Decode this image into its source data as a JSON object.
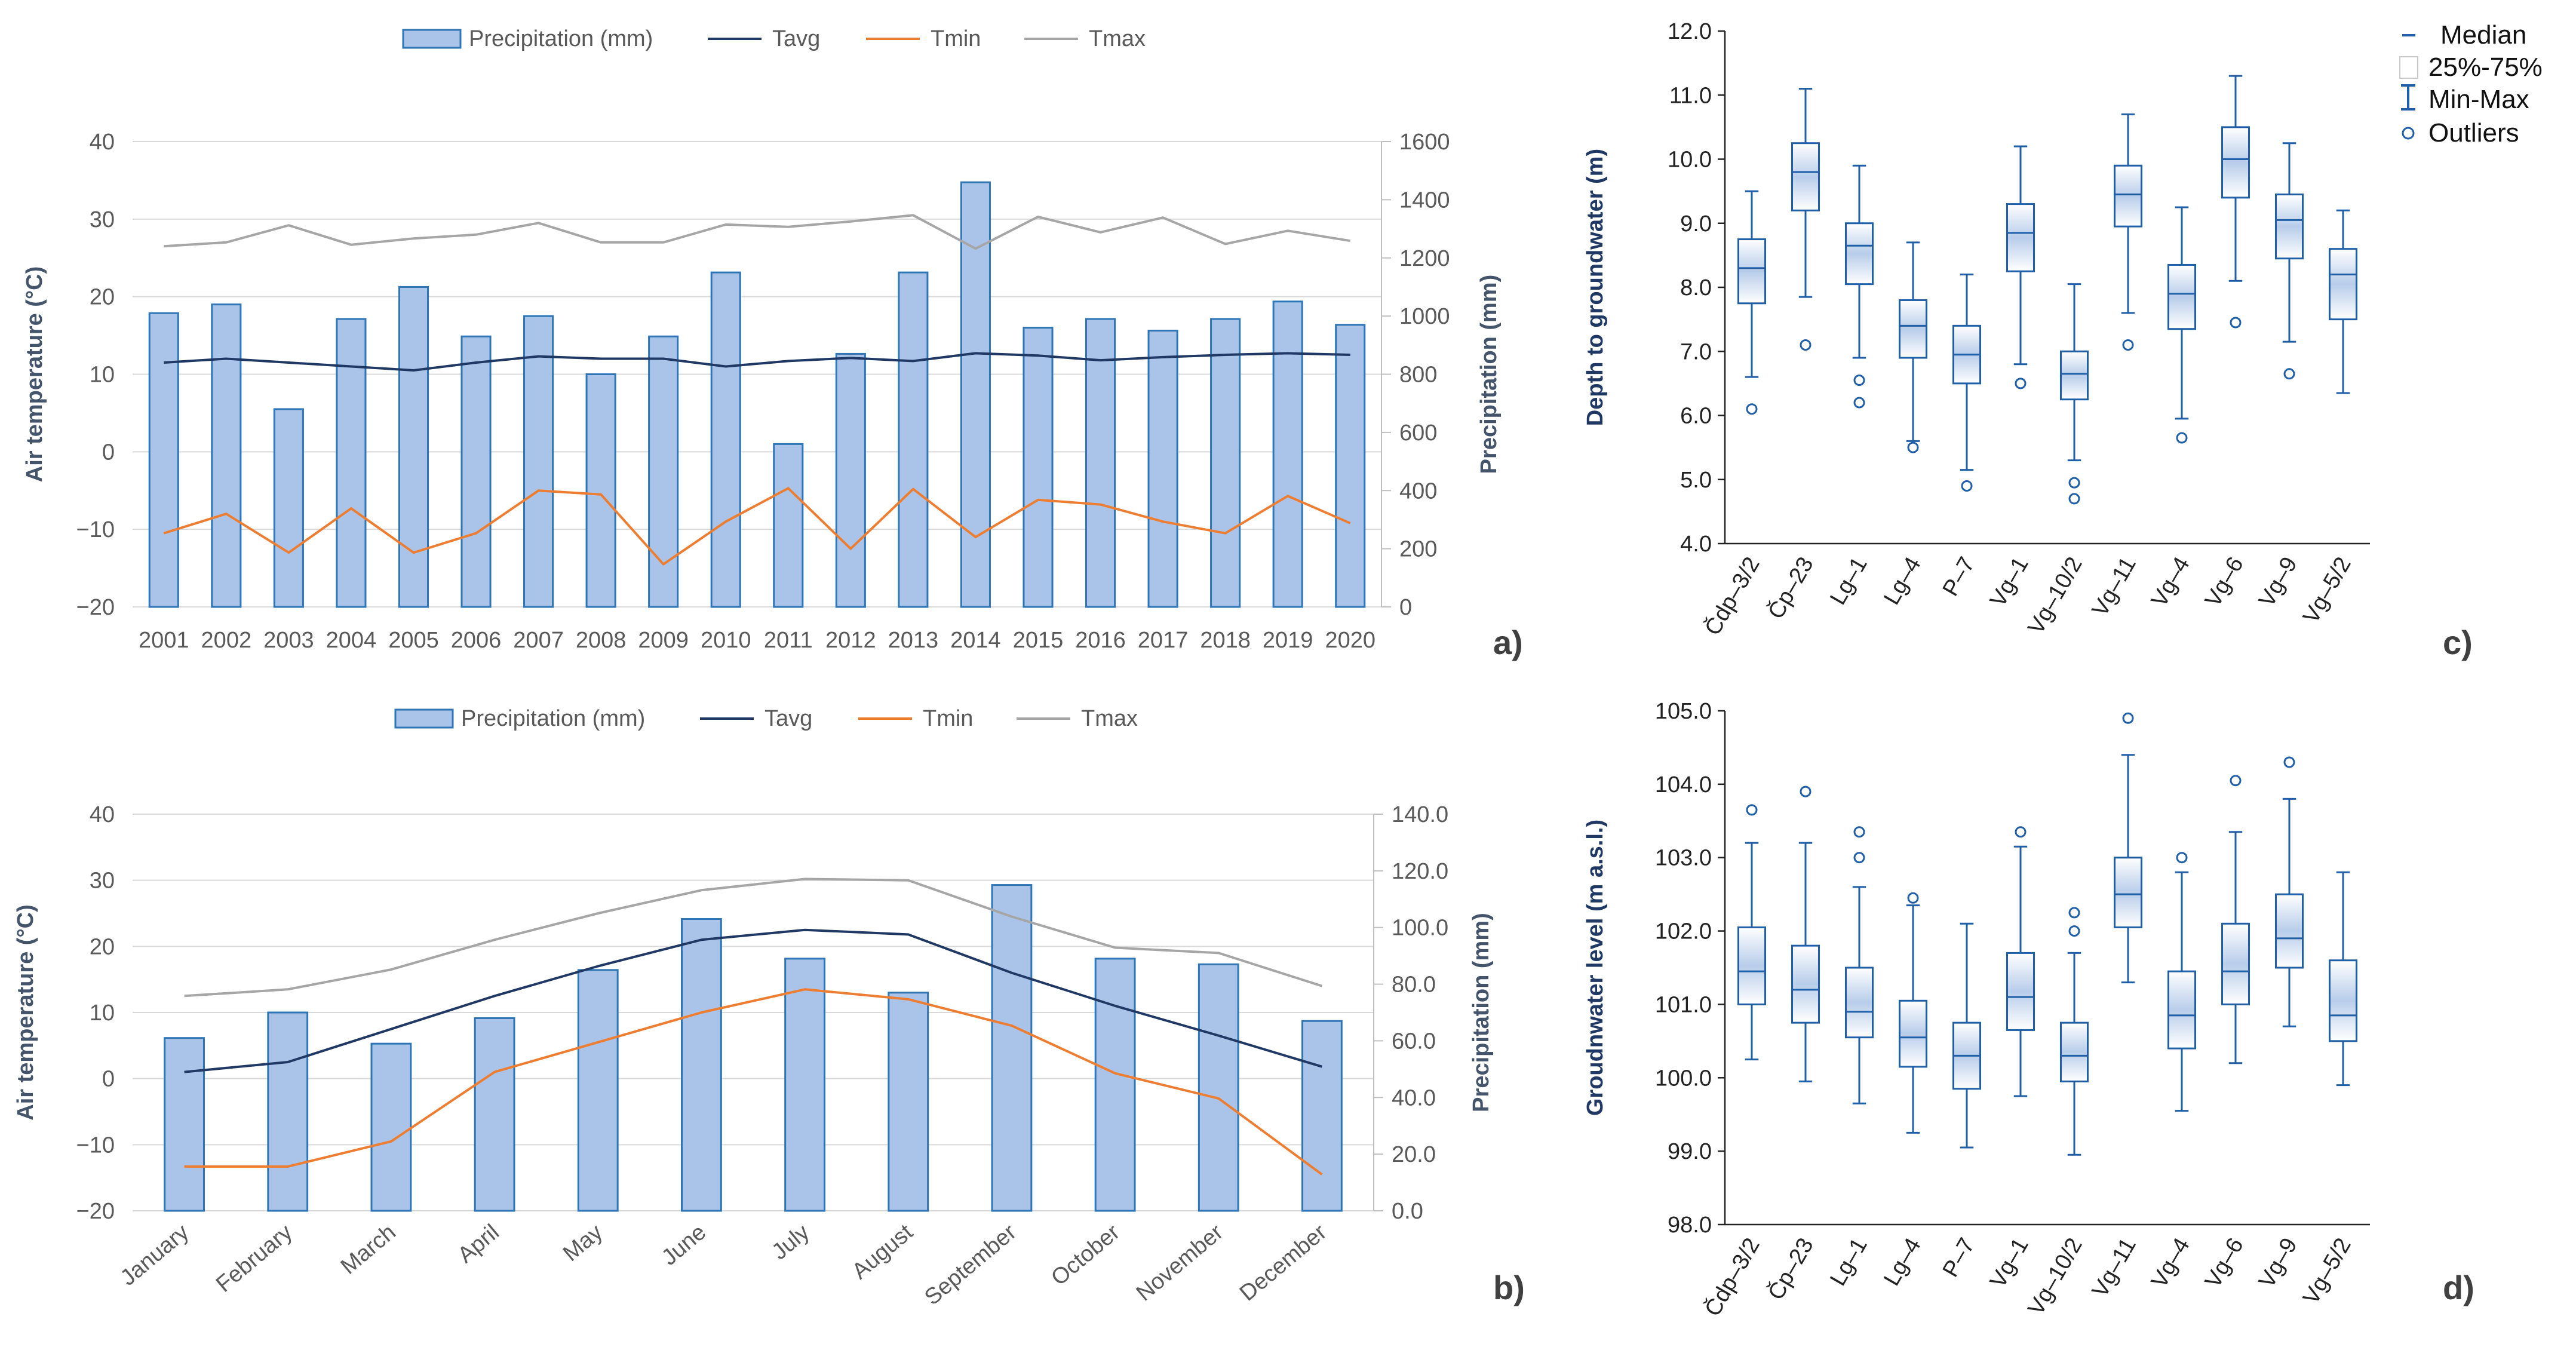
{
  "chart_data": [
    {
      "id": "a",
      "type": "bar",
      "panel_label": "a)",
      "categories": [
        "2001",
        "2002",
        "2003",
        "2004",
        "2005",
        "2006",
        "2007",
        "2008",
        "2009",
        "2010",
        "2011",
        "2012",
        "2013",
        "2014",
        "2015",
        "2016",
        "2017",
        "2018",
        "2019",
        "2020"
      ],
      "series": [
        {
          "name": "Precipitation (mm)",
          "kind": "bar",
          "axis": "right",
          "color": "#a9c4e8",
          "edge": "#2e75b6",
          "values": [
            1010,
            1040,
            680,
            990,
            1100,
            930,
            1000,
            800,
            930,
            1150,
            560,
            870,
            1150,
            1460,
            960,
            990,
            950,
            990,
            1050,
            970
          ]
        },
        {
          "name": "Tavg",
          "kind": "line",
          "axis": "left",
          "color": "#1f3864",
          "values": [
            11.5,
            12,
            11.5,
            11,
            10.5,
            11.5,
            12.3,
            12,
            12,
            11,
            11.7,
            12.1,
            11.7,
            12.7,
            12.4,
            11.8,
            12.2,
            12.5,
            12.7,
            12.5
          ]
        },
        {
          "name": "Tmin",
          "kind": "line",
          "axis": "left",
          "color": "#ed7d31",
          "values": [
            -10.5,
            -8,
            -13,
            -7.3,
            -13,
            -10.5,
            -5,
            -5.5,
            -14.5,
            -9,
            -4.7,
            -12.5,
            -4.8,
            -11,
            -6.2,
            -6.8,
            -9,
            -10.5,
            -5.7,
            -9.2
          ]
        },
        {
          "name": "Tmax",
          "kind": "line",
          "axis": "left",
          "color": "#a6a6a6",
          "values": [
            26.5,
            27,
            29.2,
            26.7,
            27.5,
            28,
            29.5,
            27,
            27,
            29.3,
            29,
            29.7,
            30.5,
            26.2,
            30.3,
            28.3,
            30.2,
            26.8,
            28.5,
            27.2
          ]
        }
      ],
      "xlabel": "",
      "ylabel": "Air temperature (°C)",
      "y2label": "Precipitation (mm)",
      "ylim": [
        -20,
        40
      ],
      "y2lim": [
        0,
        1600
      ],
      "yticks": [
        "40",
        "30",
        "20",
        "10",
        "0",
        "−10",
        "−20"
      ],
      "y2ticks": [
        "1600",
        "1400",
        "1200",
        "1000",
        "800",
        "600",
        "400",
        "200",
        "0"
      ],
      "legend": "top"
    },
    {
      "id": "b",
      "type": "bar",
      "panel_label": "b)",
      "categories": [
        "January",
        "February",
        "March",
        "April",
        "May",
        "June",
        "July",
        "August",
        "September",
        "October",
        "November",
        "December"
      ],
      "series": [
        {
          "name": "Precipitation (mm)",
          "kind": "bar",
          "axis": "right",
          "color": "#a9c4e8",
          "edge": "#2e75b6",
          "values": [
            61,
            70,
            59,
            68,
            85,
            103,
            89,
            77,
            115,
            89,
            87,
            67
          ]
        },
        {
          "name": "Tavg",
          "kind": "line",
          "axis": "left",
          "color": "#1f3864",
          "values": [
            1,
            2.5,
            7.5,
            12.5,
            17,
            21,
            22.5,
            21.8,
            16,
            11,
            6.5,
            1.8
          ]
        },
        {
          "name": "Tmin",
          "kind": "line",
          "axis": "left",
          "color": "#ed7d31",
          "values": [
            -13.3,
            -13.3,
            -9.5,
            1,
            5.5,
            10,
            13.5,
            12,
            8,
            0.8,
            -3,
            -14.5
          ]
        },
        {
          "name": "Tmax",
          "kind": "line",
          "axis": "left",
          "color": "#a6a6a6",
          "values": [
            12.5,
            13.5,
            16.5,
            21,
            25,
            28.5,
            30.2,
            30,
            24.5,
            19.8,
            19,
            14
          ]
        }
      ],
      "xlabel": "",
      "ylabel": "Air temperature (°C)",
      "y2label": "Precipitation (mm)",
      "ylim": [
        -20,
        40
      ],
      "y2lim": [
        0,
        140
      ],
      "yticks": [
        "40",
        "30",
        "20",
        "10",
        "0",
        "−10",
        "−20"
      ],
      "y2ticks": [
        "140.0",
        "120.0",
        "100.0",
        "80.0",
        "60.0",
        "40.0",
        "20.0",
        "0.0"
      ],
      "legend": "top"
    },
    {
      "id": "c",
      "type": "box",
      "panel_label": "c)",
      "categories": [
        "Čdp–3/2",
        "Čp–23",
        "Lg–1",
        "Lg–4",
        "P–7",
        "Vg–1",
        "Vg–10/2",
        "Vg–11",
        "Vg–4",
        "Vg–6",
        "Vg–9",
        "Vg–5/2"
      ],
      "boxes": [
        {
          "min": 6.6,
          "q1": 7.75,
          "median": 8.3,
          "q3": 8.75,
          "max": 9.5,
          "outliers": [
            6.1
          ]
        },
        {
          "min": 7.85,
          "q1": 9.2,
          "median": 9.8,
          "q3": 10.25,
          "max": 11.1,
          "outliers": [
            7.1
          ]
        },
        {
          "min": 6.9,
          "q1": 8.05,
          "median": 8.65,
          "q3": 9.0,
          "max": 9.9,
          "outliers": [
            6.55,
            6.2
          ]
        },
        {
          "min": 5.6,
          "q1": 6.9,
          "median": 7.4,
          "q3": 7.8,
          "max": 8.7,
          "outliers": [
            5.5
          ]
        },
        {
          "min": 5.15,
          "q1": 6.5,
          "median": 6.95,
          "q3": 7.4,
          "max": 8.2,
          "outliers": [
            4.9
          ]
        },
        {
          "min": 6.8,
          "q1": 8.25,
          "median": 8.85,
          "q3": 9.3,
          "max": 10.2,
          "outliers": [
            6.5
          ]
        },
        {
          "min": 5.3,
          "q1": 6.25,
          "median": 6.65,
          "q3": 7.0,
          "max": 8.05,
          "outliers": [
            4.95,
            4.7
          ]
        },
        {
          "min": 7.6,
          "q1": 8.95,
          "median": 9.45,
          "q3": 9.9,
          "max": 10.7,
          "outliers": [
            7.1
          ]
        },
        {
          "min": 5.95,
          "q1": 7.35,
          "median": 7.9,
          "q3": 8.35,
          "max": 9.25,
          "outliers": [
            5.65
          ]
        },
        {
          "min": 8.1,
          "q1": 9.4,
          "median": 10.0,
          "q3": 10.5,
          "max": 11.3,
          "outliers": [
            7.45
          ]
        },
        {
          "min": 7.15,
          "q1": 8.45,
          "median": 9.05,
          "q3": 9.45,
          "max": 10.25,
          "outliers": [
            6.65
          ]
        },
        {
          "min": 6.35,
          "q1": 7.5,
          "median": 8.2,
          "q3": 8.6,
          "max": 9.2,
          "outliers": []
        }
      ],
      "ylabel": "Depth to groundwater (m)",
      "ylim": [
        4.0,
        12.0
      ],
      "yticks": [
        "12.0",
        "11.0",
        "10.0",
        "9.0",
        "8.0",
        "7.0",
        "6.0",
        "5.0",
        "4.0"
      ],
      "legend": "top-right"
    },
    {
      "id": "d",
      "type": "box",
      "panel_label": "d)",
      "categories": [
        "Čdp–3/2",
        "Čp–23",
        "Lg–1",
        "Lg–4",
        "P–7",
        "Vg–1",
        "Vg–10/2",
        "Vg–11",
        "Vg–4",
        "Vg–6",
        "Vg–9",
        "Vg–5/2"
      ],
      "boxes": [
        {
          "min": 100.25,
          "q1": 101.0,
          "median": 101.45,
          "q3": 102.05,
          "max": 103.2,
          "outliers": [
            103.65
          ]
        },
        {
          "min": 99.95,
          "q1": 100.75,
          "median": 101.2,
          "q3": 101.8,
          "max": 103.2,
          "outliers": [
            103.9
          ]
        },
        {
          "min": 99.65,
          "q1": 100.55,
          "median": 100.9,
          "q3": 101.5,
          "max": 102.6,
          "outliers": [
            103.35,
            103.0
          ]
        },
        {
          "min": 99.25,
          "q1": 100.15,
          "median": 100.55,
          "q3": 101.05,
          "max": 102.35,
          "outliers": [
            102.45
          ]
        },
        {
          "min": 99.05,
          "q1": 99.85,
          "median": 100.3,
          "q3": 100.75,
          "max": 102.1,
          "outliers": []
        },
        {
          "min": 99.75,
          "q1": 100.65,
          "median": 101.1,
          "q3": 101.7,
          "max": 103.15,
          "outliers": [
            103.35
          ]
        },
        {
          "min": 98.95,
          "q1": 99.95,
          "median": 100.3,
          "q3": 100.75,
          "max": 101.7,
          "outliers": [
            102.25,
            102.0
          ]
        },
        {
          "min": 101.3,
          "q1": 102.05,
          "median": 102.5,
          "q3": 103.0,
          "max": 104.4,
          "outliers": [
            104.9
          ]
        },
        {
          "min": 99.55,
          "q1": 100.4,
          "median": 100.85,
          "q3": 101.45,
          "max": 102.8,
          "outliers": [
            103.0
          ]
        },
        {
          "min": 100.2,
          "q1": 101.0,
          "median": 101.45,
          "q3": 102.1,
          "max": 103.35,
          "outliers": [
            104.05
          ]
        },
        {
          "min": 100.7,
          "q1": 101.5,
          "median": 101.9,
          "q3": 102.5,
          "max": 103.8,
          "outliers": [
            104.3
          ]
        },
        {
          "min": 99.9,
          "q1": 100.5,
          "median": 100.85,
          "q3": 101.6,
          "max": 102.8,
          "outliers": []
        }
      ],
      "ylabel": "Groudnwater level (m a.s.l.)",
      "ylim": [
        98.0,
        105.0
      ],
      "yticks": [
        "105.0",
        "104.0",
        "103.0",
        "102.0",
        "101.0",
        "100.0",
        "99.0",
        "98.0"
      ],
      "legend": "none"
    }
  ],
  "box_legend": {
    "median": "Median",
    "iqr": "25%-75%",
    "range": "Min-Max",
    "outliers": "Outliers"
  },
  "colors": {
    "bar_fill": "#a9c4e8",
    "bar_edge": "#2e75b6",
    "box_edge": "#1f5fa8",
    "tavg": "#1f3864",
    "tmin": "#ed7d31",
    "tmax": "#a6a6a6"
  }
}
